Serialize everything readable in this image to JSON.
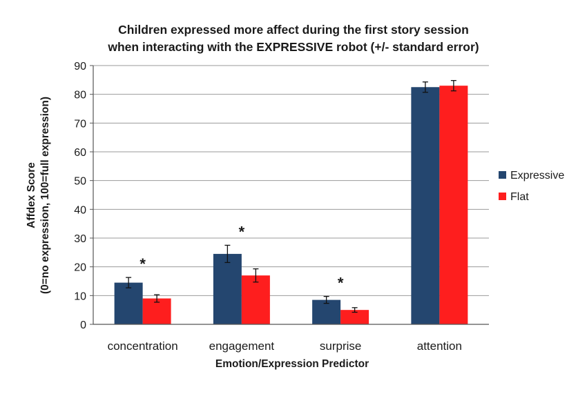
{
  "chart_data": {
    "type": "bar",
    "title": [
      "Children expressed more affect during the first story session",
      "when interacting with the EXPRESSIVE robot (+/- standard error)"
    ],
    "xlabel": "Emotion/Expression Predictor",
    "ylabel": [
      "Affdex Score",
      "(0=no expression, 100=full expression)"
    ],
    "ylim": [
      0,
      90
    ],
    "yticks": [
      0,
      10,
      20,
      30,
      40,
      50,
      60,
      70,
      80,
      90
    ],
    "grid": true,
    "legend_position": "right",
    "categories": [
      "concentration",
      "engagement",
      "surprise",
      "attention"
    ],
    "series": [
      {
        "name": "Expressive",
        "color": "#24466f",
        "values": [
          14.5,
          24.5,
          8.5,
          82.5
        ],
        "errors": [
          1.8,
          3.0,
          1.2,
          1.8
        ]
      },
      {
        "name": "Flat",
        "color": "#fe1e1e",
        "values": [
          9.0,
          17.0,
          5.0,
          83.0
        ],
        "errors": [
          1.3,
          2.3,
          0.8,
          1.8
        ]
      }
    ],
    "significance": [
      "*",
      "*",
      "*",
      ""
    ]
  }
}
